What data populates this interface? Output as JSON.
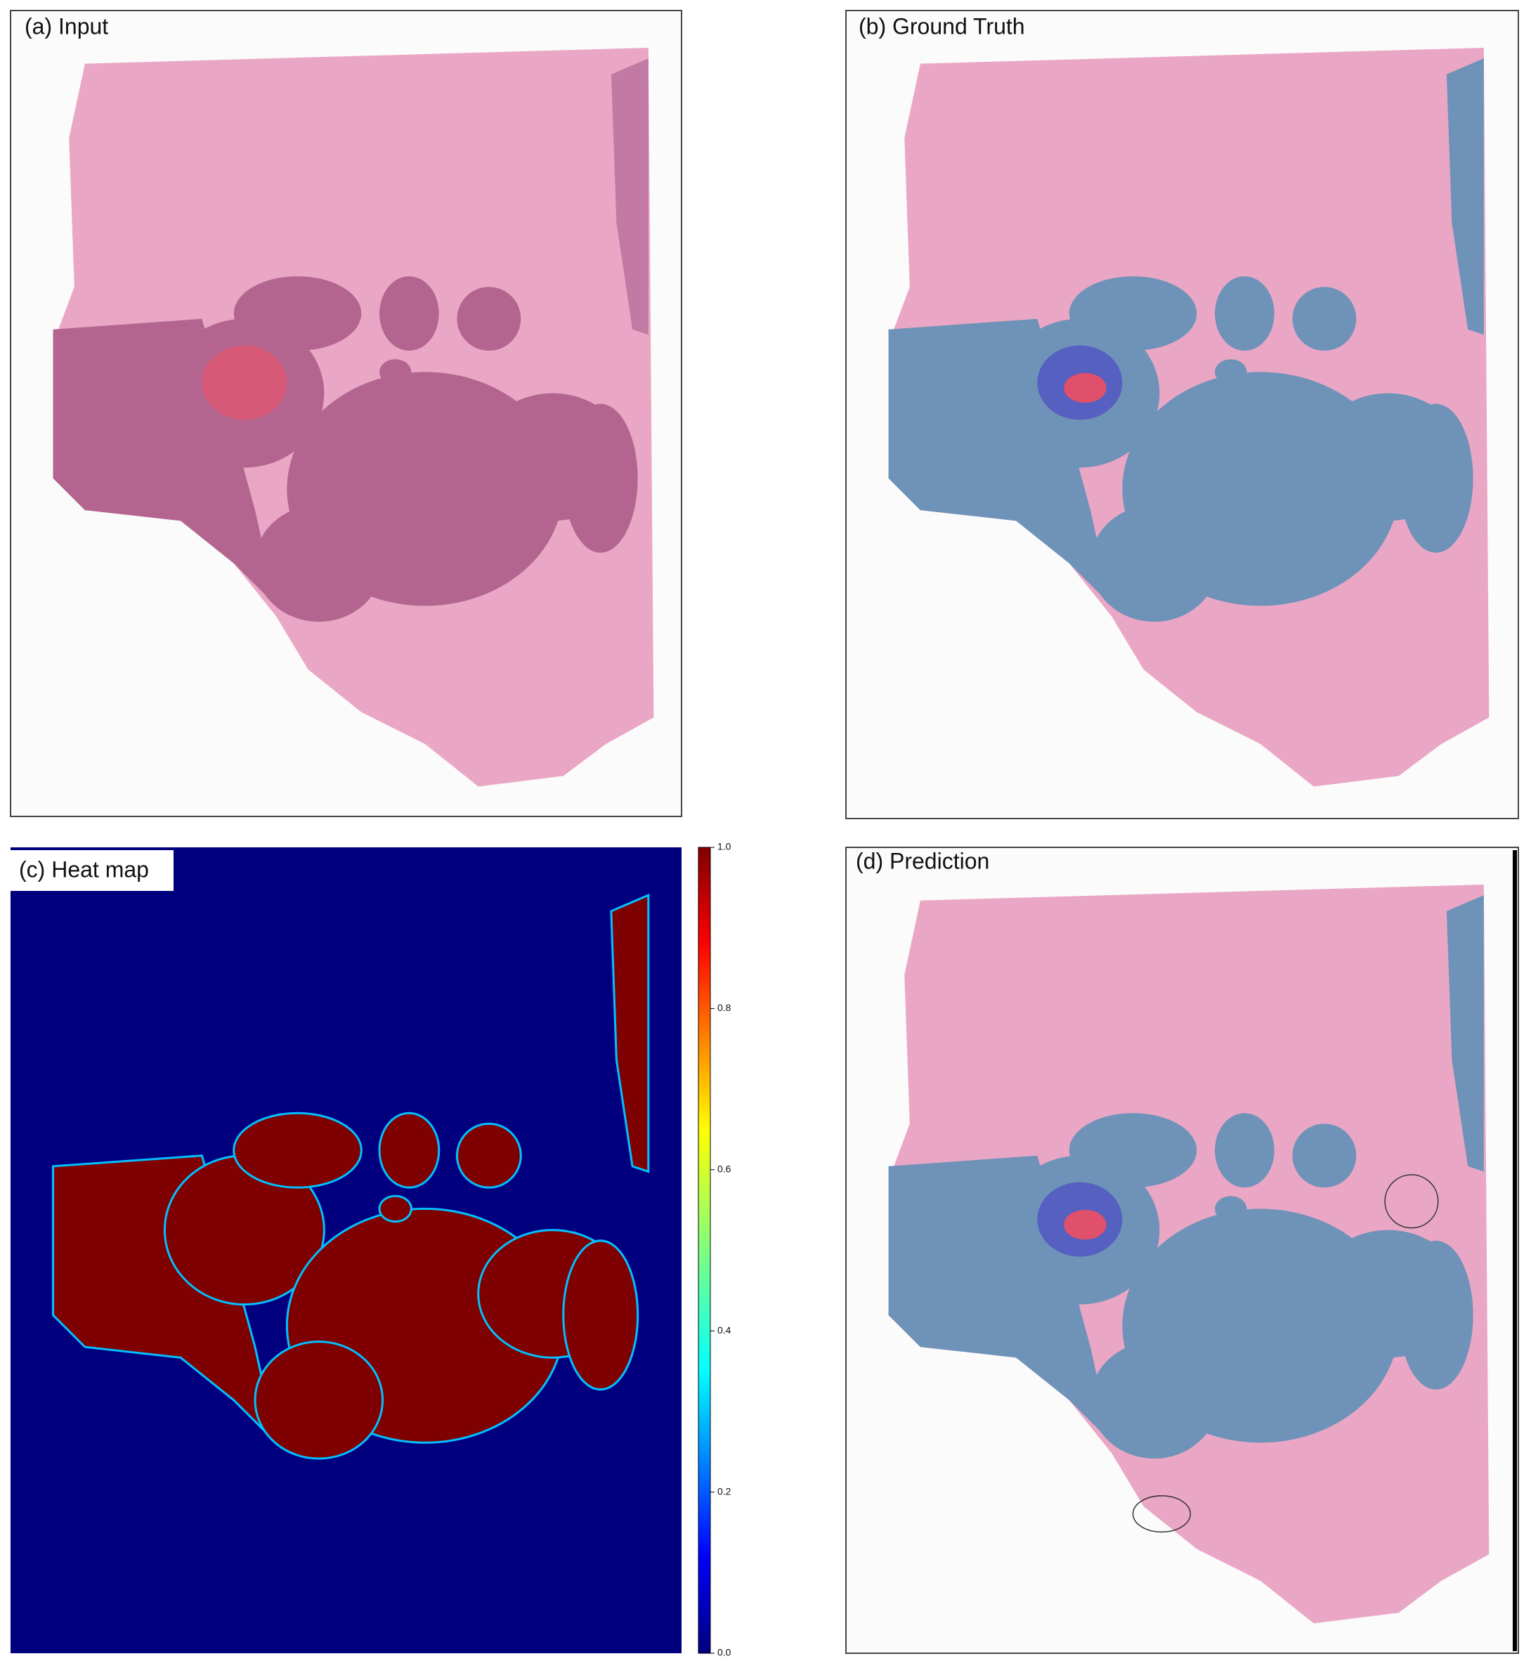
{
  "panels": [
    {
      "label": "(a) Input"
    },
    {
      "label": "(b) Ground Truth"
    },
    {
      "label": "(c) Heat map"
    },
    {
      "label": "(d) Prediction"
    }
  ],
  "colorbar": {
    "range": [
      0,
      1
    ],
    "ticks": [
      {
        "value": 0,
        "label": "0.0"
      },
      0.2,
      0.4,
      0.6,
      0.8,
      {
        "value": 1,
        "label": "1.0"
      }
    ]
  }
}
